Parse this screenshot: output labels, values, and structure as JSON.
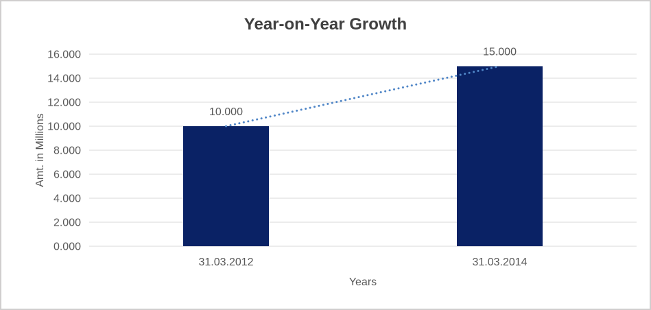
{
  "chart_data": {
    "type": "bar",
    "title": "Year-on-Year Growth",
    "xlabel": "Years",
    "ylabel": "Amt. in Millions",
    "categories": [
      "31.03.2012",
      "31.03.2014"
    ],
    "values": [
      10,
      15
    ],
    "data_labels": [
      "10.000",
      "15.000"
    ],
    "ylim": [
      0,
      16
    ],
    "ytick_step": 2,
    "ytick_labels": [
      "0.000",
      "2.000",
      "4.000",
      "6.000",
      "8.000",
      "10.000",
      "12.000",
      "14.000",
      "16.000"
    ],
    "grid": true,
    "legend": "none",
    "trendline": {
      "type": "linear",
      "style": "dotted",
      "connects": "bar-top-centers"
    },
    "colors": {
      "bar": "#0a2265",
      "trendline": "#5086c7",
      "gridline": "#d9d9d9",
      "tick_text": "#595959",
      "label_text": "#595959",
      "title_text": "#404040",
      "background": "#ffffff",
      "border": "#d0cece"
    }
  }
}
